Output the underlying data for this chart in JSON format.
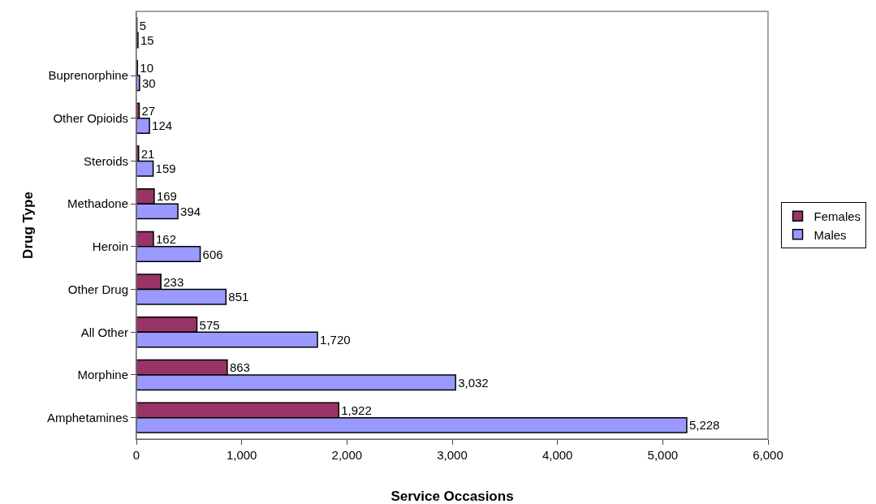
{
  "chart_data": {
    "type": "bar",
    "orientation": "horizontal",
    "xlabel": "Service Occasions",
    "ylabel": "Drug Type",
    "categories": [
      null,
      "Buprenorphine",
      "Other Opioids",
      "Steroids",
      "Methadone",
      "Heroin",
      "Other Drug",
      "All Other",
      "Morphine",
      "Amphetamines"
    ],
    "series": [
      {
        "name": "Females",
        "color": "#993366",
        "values": [
          5,
          10,
          27,
          21,
          169,
          162,
          233,
          575,
          863,
          1922
        ],
        "value_labels": [
          "5",
          "10",
          "27",
          "21",
          "169",
          "162",
          "233",
          "575",
          "863",
          "1,922"
        ]
      },
      {
        "name": "Males",
        "color": "#9999ff",
        "values": [
          15,
          30,
          124,
          159,
          394,
          606,
          851,
          1720,
          3032,
          5228
        ],
        "value_labels": [
          "15",
          "30",
          "124",
          "159",
          "394",
          "606",
          "851",
          "1,720",
          "3,032",
          "5,228"
        ]
      }
    ],
    "xlim": [
      0,
      6000
    ],
    "xticks": [
      0,
      {
        "value": 1000,
        "label": "1,000"
      },
      {
        "value": 2000,
        "label": "2,000"
      },
      {
        "value": 3000,
        "label": "3,000"
      },
      {
        "value": 4000,
        "label": "4,000"
      },
      {
        "value": 5000,
        "label": "5,000"
      },
      {
        "value": 6000,
        "label": "6,000"
      }
    ],
    "grid": false,
    "legend": "right"
  }
}
